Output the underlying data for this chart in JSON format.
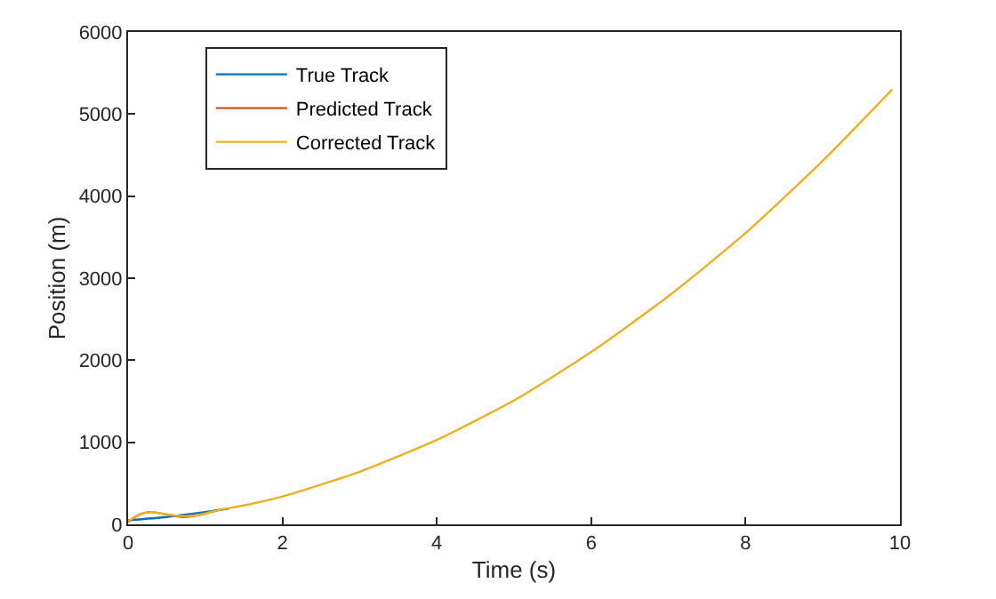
{
  "chart_data": {
    "type": "line",
    "xlabel": "Time (s)",
    "ylabel": "Position (m)",
    "xlim": [
      0,
      10
    ],
    "ylim": [
      0,
      6000
    ],
    "xticks": [
      0,
      2,
      4,
      6,
      8,
      10
    ],
    "yticks": [
      0,
      1000,
      2000,
      3000,
      4000,
      5000,
      6000
    ],
    "legend": "top left",
    "line_style": "solid",
    "marker": "none",
    "series": [
      {
        "name": "True Track",
        "color": "#0072bd",
        "x": [
          0,
          0.5,
          1,
          1.3
        ],
        "values": [
          50,
          90,
          150,
          190
        ]
      },
      {
        "name": "Predicted Track",
        "color": "#d95319",
        "x": [
          0,
          0.15,
          0.3,
          0.5,
          0.7,
          0.9,
          1.2
        ],
        "values": [
          30,
          120,
          150,
          120,
          90,
          110,
          180
        ]
      },
      {
        "name": "Corrected Track",
        "color": "#edb120",
        "x": [
          0,
          0.15,
          0.3,
          0.5,
          0.7,
          0.9,
          1.2,
          1.5,
          2,
          3,
          4,
          5,
          6,
          7,
          8,
          9,
          9.9
        ],
        "values": [
          40,
          120,
          150,
          120,
          100,
          110,
          180,
          230,
          340,
          640,
          1030,
          1510,
          2100,
          2780,
          3550,
          4430,
          5300
        ]
      }
    ]
  }
}
